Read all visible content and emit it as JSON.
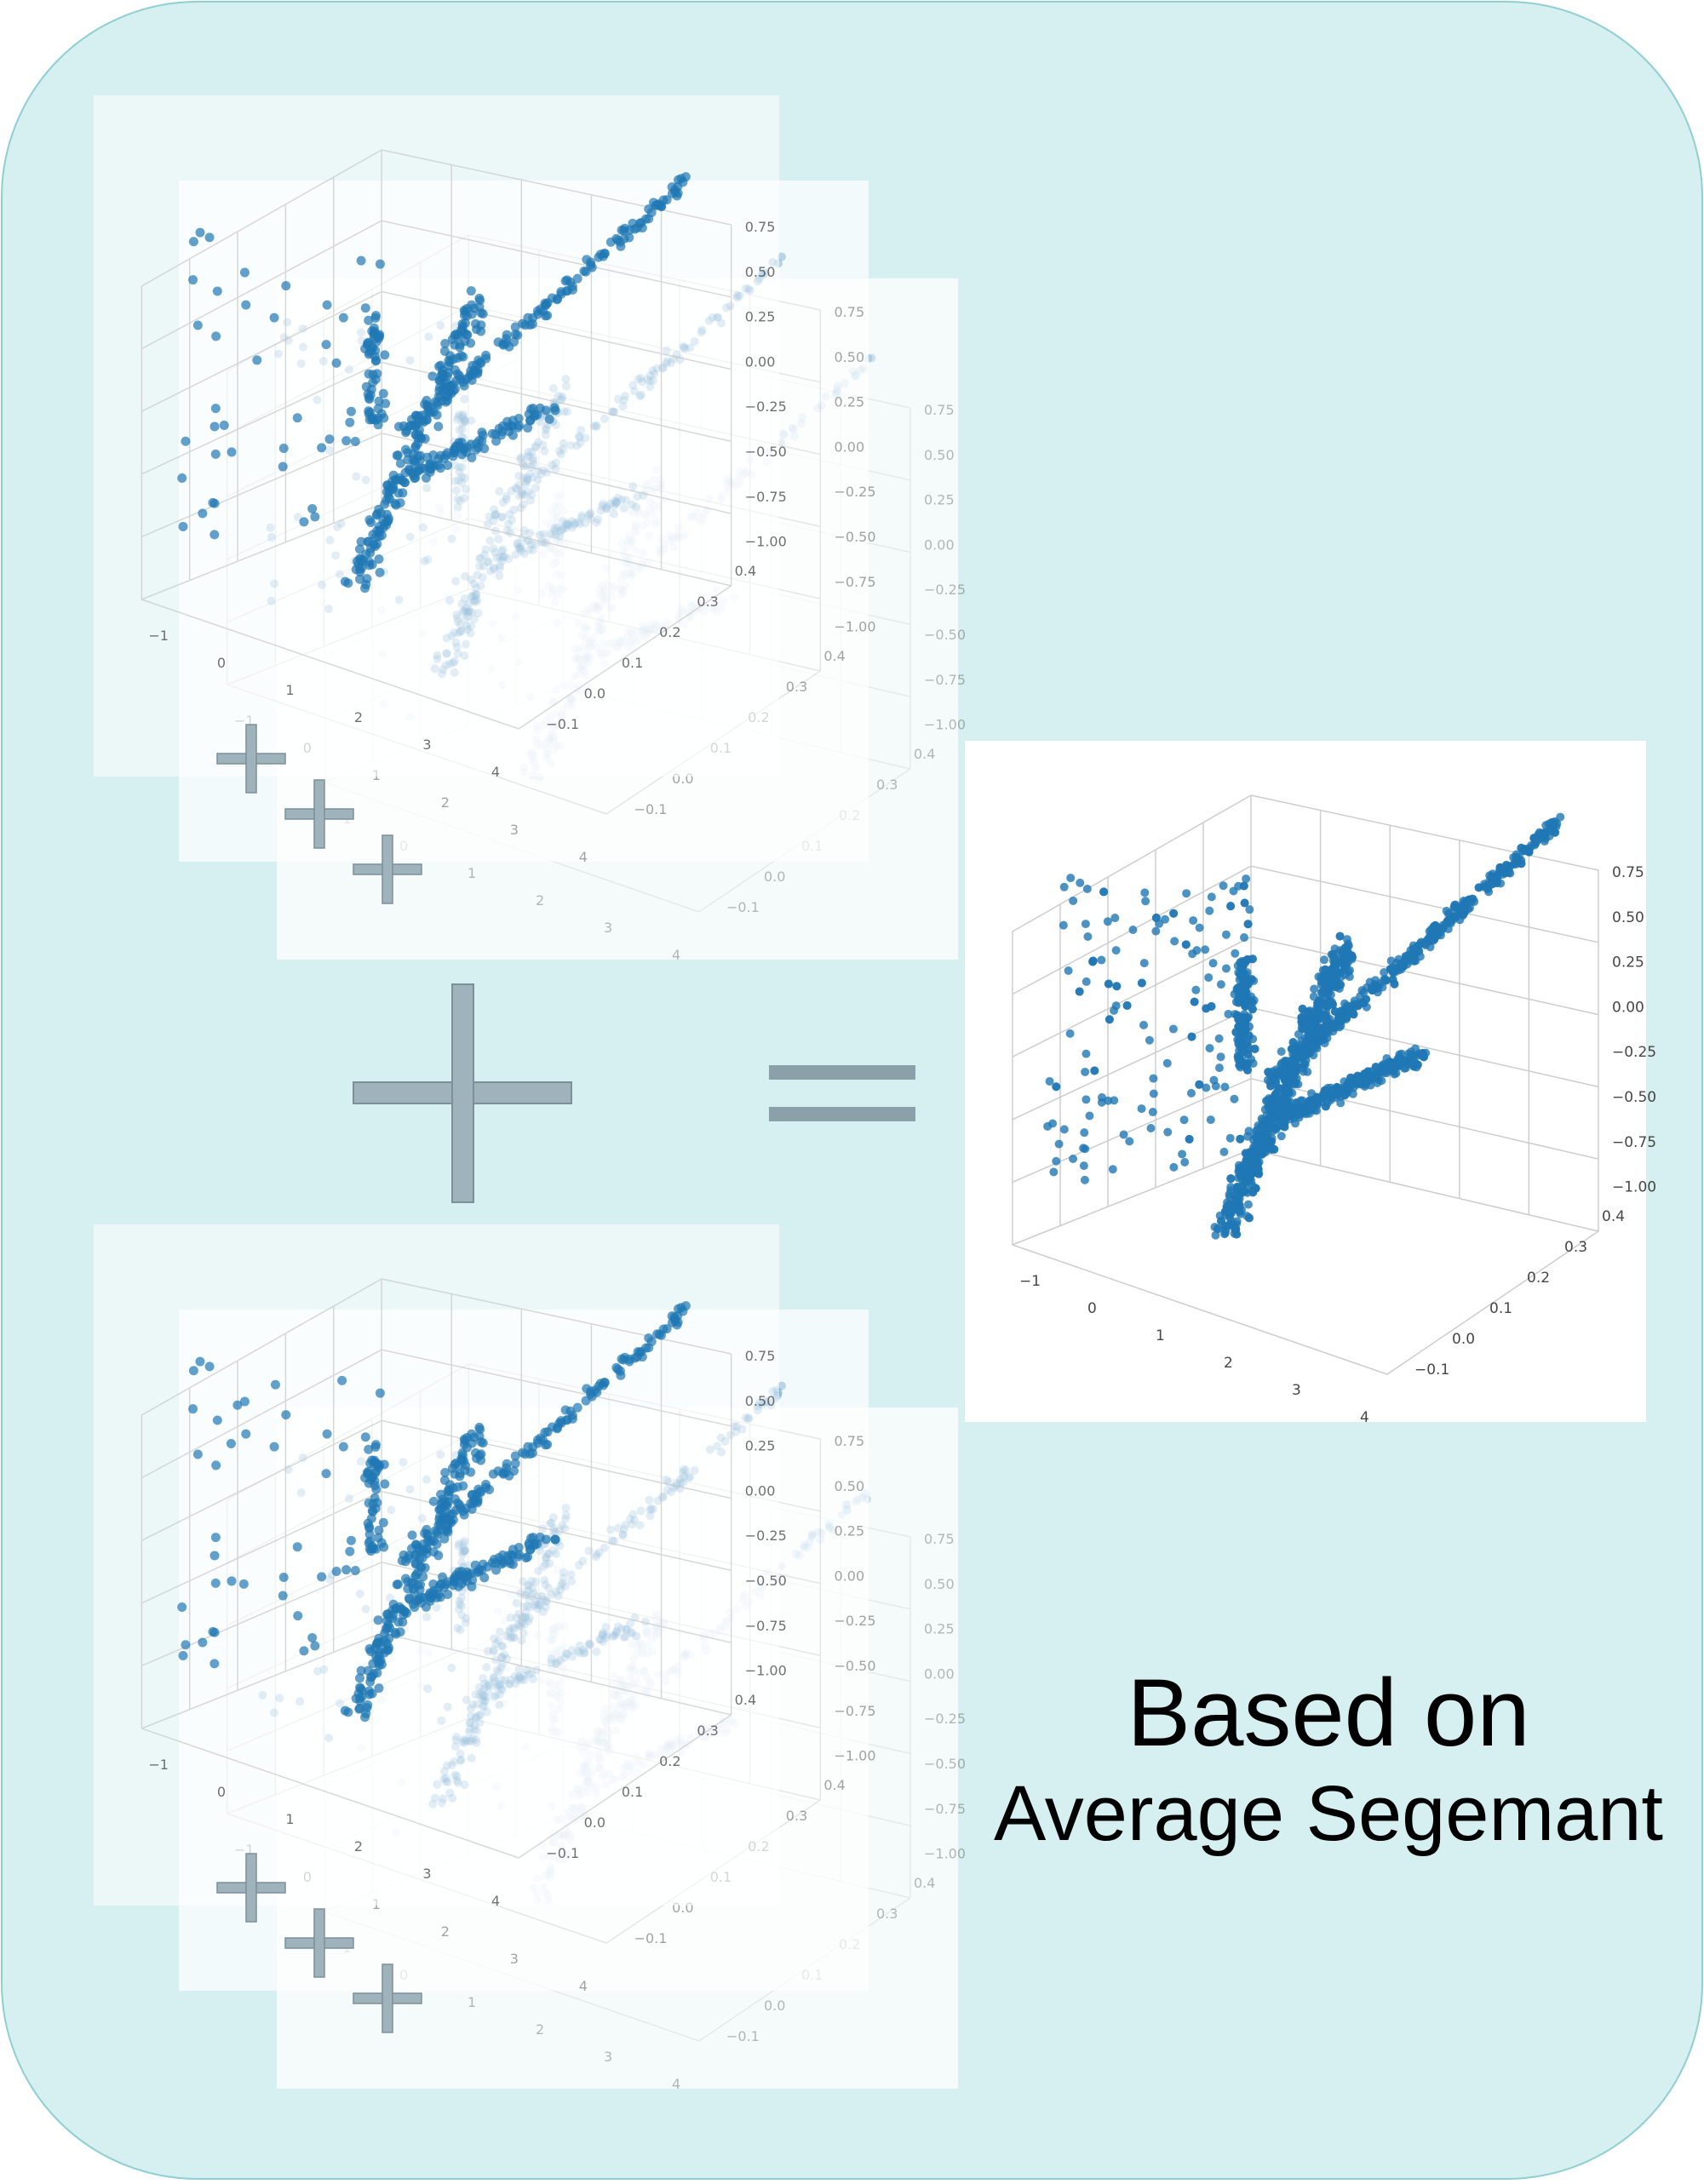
{
  "caption": {
    "line1": "Based on",
    "line2": "Average Segemant"
  },
  "axis_ticks": {
    "x": [
      "−1",
      "0",
      "1",
      "2",
      "3",
      "4"
    ],
    "y": [
      "−0.1",
      "0.0",
      "0.1",
      "0.2",
      "0.3",
      "0.4"
    ],
    "z": [
      "0.75",
      "0.50",
      "0.25",
      "0.00",
      "−0.25",
      "−0.50",
      "−0.75",
      "−1.00"
    ]
  },
  "colors": {
    "background": "#d6eff0",
    "frame_border": "#8fcfd2",
    "points": "#1f77b4",
    "operator": "#9fb3bd",
    "operator_border": "#7d8f98",
    "equals": "#8ca0aa"
  },
  "operators": {
    "large_plus": "plus",
    "small_plus": "plus",
    "equals": "equals"
  }
}
